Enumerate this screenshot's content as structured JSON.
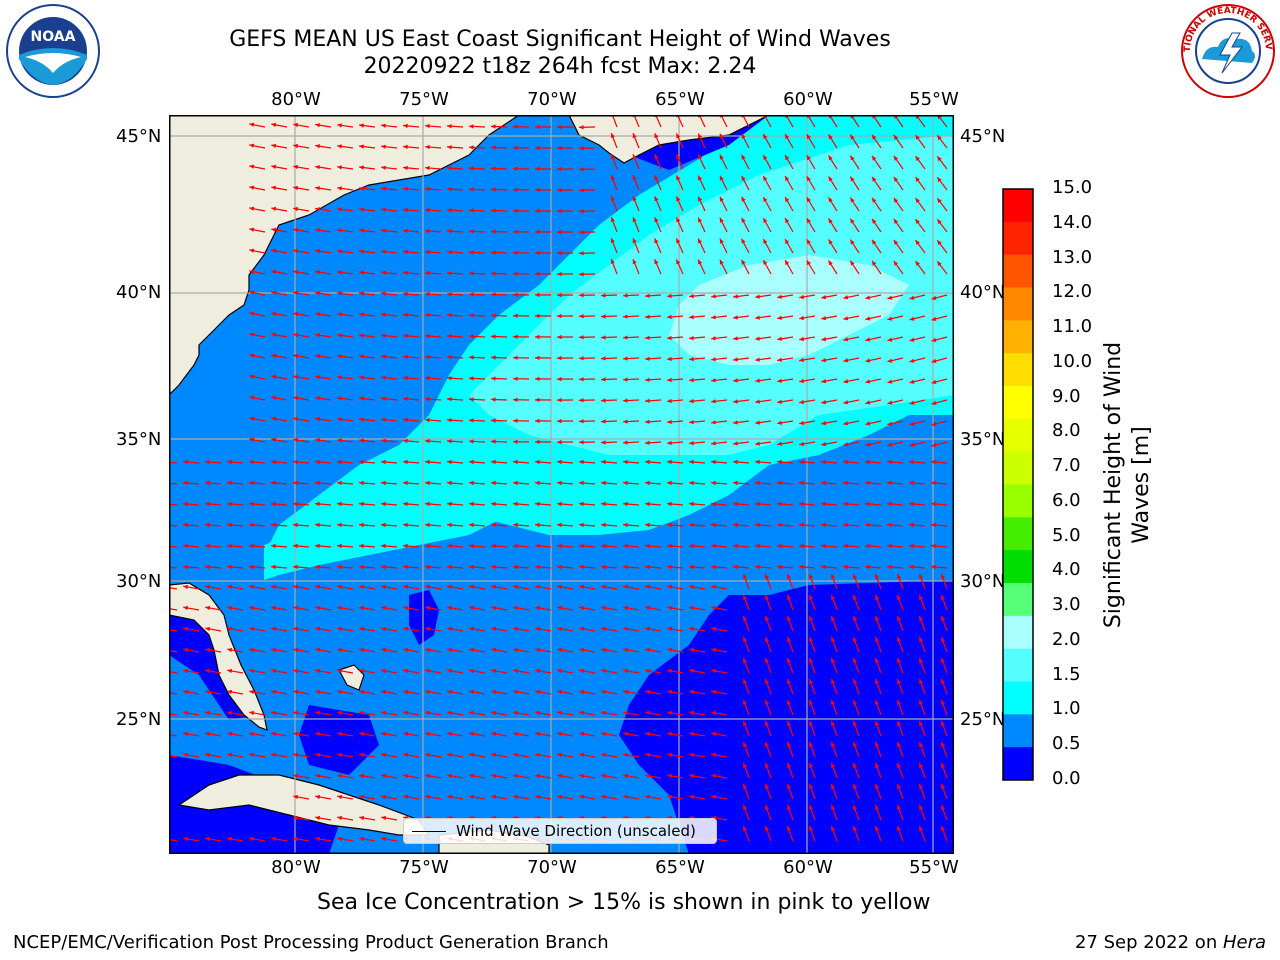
{
  "header": {
    "title_line1": "GEFS MEAN US East Coast Significant Height of Wind Waves",
    "title_line2": "20220922 t18z 264h fcst   Max: 2.24"
  },
  "axes": {
    "lon_labels": [
      "80°W",
      "75°W",
      "70°W",
      "65°W",
      "60°W",
      "55°W"
    ],
    "lat_labels": [
      "45°N",
      "40°N",
      "35°N",
      "30°N",
      "25°N"
    ]
  },
  "colorbar": {
    "title_line1": "Significant Height of Wind",
    "title_line2": "Waves [m]",
    "ticks": [
      "15.0",
      "14.0",
      "13.0",
      "12.0",
      "11.0",
      "10.0",
      "9.0",
      "8.0",
      "7.0",
      "6.0",
      "5.0",
      "4.0",
      "3.0",
      "2.0",
      "1.5",
      "1.0",
      "0.5",
      "0.0"
    ],
    "colors": [
      "#ff0000",
      "#ff2200",
      "#ff5500",
      "#ff8800",
      "#ffb000",
      "#ffdd00",
      "#ffff00",
      "#e6ff00",
      "#ccff00",
      "#99ff00",
      "#44ee00",
      "#00dd00",
      "#55ff77",
      "#aaffff",
      "#55ffff",
      "#00ffff",
      "#0088ff",
      "#0000ff"
    ]
  },
  "legend": {
    "label": "Wind Wave Direction (unscaled)"
  },
  "footer": {
    "note": "Sea Ice Concentration > 15% is shown in pink to yellow",
    "credit": "NCEP/EMC/Verification Post Processing Product Generation Branch",
    "date_prefix": "27 Sep 2022 on ",
    "date_host": "Hera"
  },
  "logos": {
    "left": "NOAA",
    "right": "NATIONAL WEATHER SERVICE"
  },
  "palette": {
    "land": "#efedde",
    "wave_0": "#0000ff",
    "wave_05": "#0088ff",
    "wave_10": "#00ffff",
    "wave_15": "#55ffff",
    "wave_20": "#aaffff",
    "arrow": "#ff0000",
    "grid": "#aaaaaa"
  }
}
